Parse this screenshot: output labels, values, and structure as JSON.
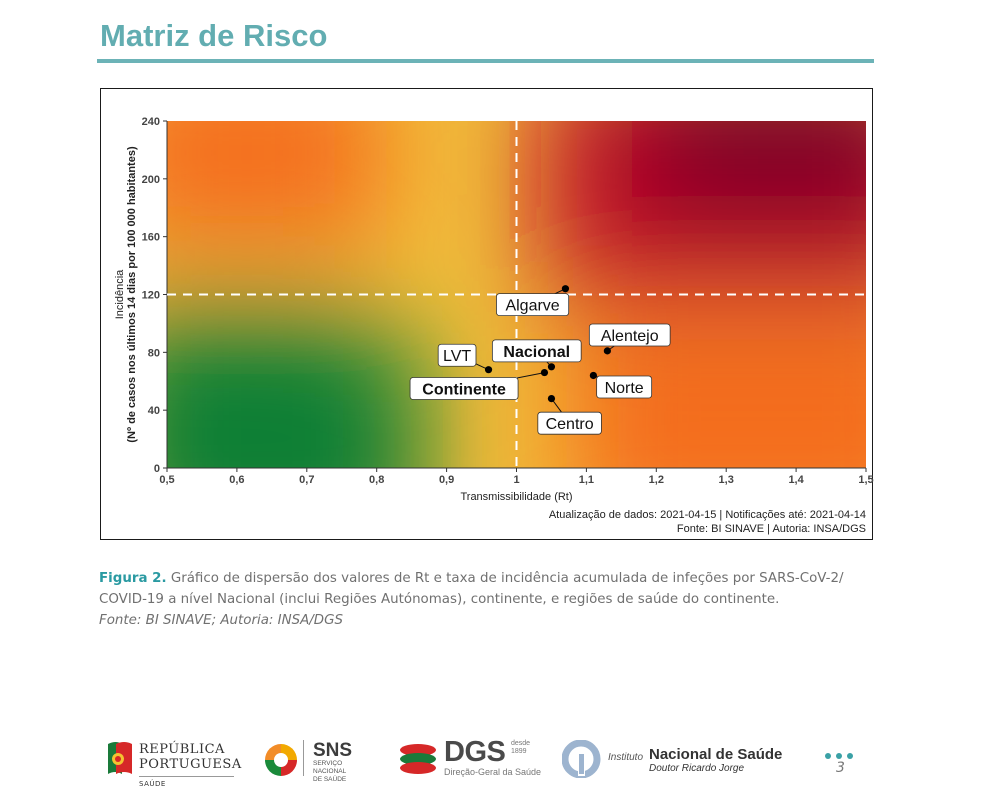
{
  "page": {
    "title": "Matriz de Risco",
    "page_number": "3",
    "theme_color": "#62adb1"
  },
  "caption": {
    "label": "Figura 2.",
    "text": " Gráfico de dispersão dos valores de Rt e taxa de incidência acumulada de infeções por SARS-CoV-2/ COVID-19 a nível Nacional (inclui Regiões Autónomas), continente, e regiões de saúde do continente.",
    "source": "Fonte: BI SINAVE; Autoria: INSA/DGS"
  },
  "chart_data": {
    "type": "scatter",
    "xlabel": "Transmissibilidade (Rt)",
    "ylabel_line1": "Incidência",
    "ylabel_line2": "(Nº de casos nos últimos 14 dias por 100 000 habitantes)",
    "xlim": [
      0.5,
      1.5
    ],
    "ylim": [
      0,
      240
    ],
    "x_ticks": [
      {
        "value": 0.5,
        "label": "0,5"
      },
      {
        "value": 0.6,
        "label": "0,6"
      },
      {
        "value": 0.7,
        "label": "0,7"
      },
      {
        "value": 0.8,
        "label": "0,8"
      },
      {
        "value": 0.9,
        "label": "0,9"
      },
      {
        "value": 1.0,
        "label": "1"
      },
      {
        "value": 1.1,
        "label": "1,1"
      },
      {
        "value": 1.2,
        "label": "1,2"
      },
      {
        "value": 1.3,
        "label": "1,3"
      },
      {
        "value": 1.4,
        "label": "1,4"
      },
      {
        "value": 1.5,
        "label": "1,5"
      }
    ],
    "y_ticks": [
      {
        "value": 0,
        "label": "0"
      },
      {
        "value": 40,
        "label": "40"
      },
      {
        "value": 80,
        "label": "80"
      },
      {
        "value": 120,
        "label": "120"
      },
      {
        "value": 160,
        "label": "160"
      },
      {
        "value": 200,
        "label": "200"
      },
      {
        "value": 240,
        "label": "240"
      }
    ],
    "thresholds": {
      "x": 1.0,
      "y": 120
    },
    "points": [
      {
        "name": "Algarve",
        "x": 1.07,
        "y": 124,
        "bold": false,
        "label_x": 1.023,
        "label_y": 113
      },
      {
        "name": "Alentejo",
        "x": 1.13,
        "y": 81,
        "bold": false,
        "label_x": 1.162,
        "label_y": 92
      },
      {
        "name": "Norte",
        "x": 1.11,
        "y": 64,
        "bold": false,
        "label_x": 1.154,
        "label_y": 56
      },
      {
        "name": "Nacional",
        "x": 1.05,
        "y": 70,
        "bold": true,
        "label_x": 1.029,
        "label_y": 81
      },
      {
        "name": "LVT",
        "x": 0.96,
        "y": 68,
        "bold": false,
        "label_x": 0.915,
        "label_y": 78
      },
      {
        "name": "Continente",
        "x": 1.04,
        "y": 66,
        "bold": true,
        "label_x": 0.925,
        "label_y": 55
      },
      {
        "name": "Centro",
        "x": 1.05,
        "y": 48,
        "bold": false,
        "label_x": 1.076,
        "label_y": 31
      }
    ],
    "notes": [
      "Atualização de dados: 2021-04-15 | Notificações até: 2021-04-14",
      "Fonte: BI SINAVE | Autoria: INSA/DGS"
    ],
    "colors": {
      "green": "#0b7f35",
      "yellow": "#f2c23a",
      "orange": "#f46c1f",
      "dark_red": "#7d0025"
    }
  },
  "footer": {
    "republica_line1": "REPÚBLICA",
    "republica_line2": "PORTUGUESA",
    "republica_sub": "SAÚDE",
    "sns_name": "SNS",
    "sns_sub_line1": "SERVIÇO NACIONAL",
    "sns_sub_line2": "DE SAÚDE",
    "dgs_name": "DGS",
    "dgs_since": "desde",
    "dgs_year": "1899",
    "dgs_sub": "Direção-Geral da Saúde",
    "insa_prefix": "Instituto",
    "insa_name": "Nacional de Saúde",
    "insa_sub": "Doutor Ricardo Jorge"
  }
}
